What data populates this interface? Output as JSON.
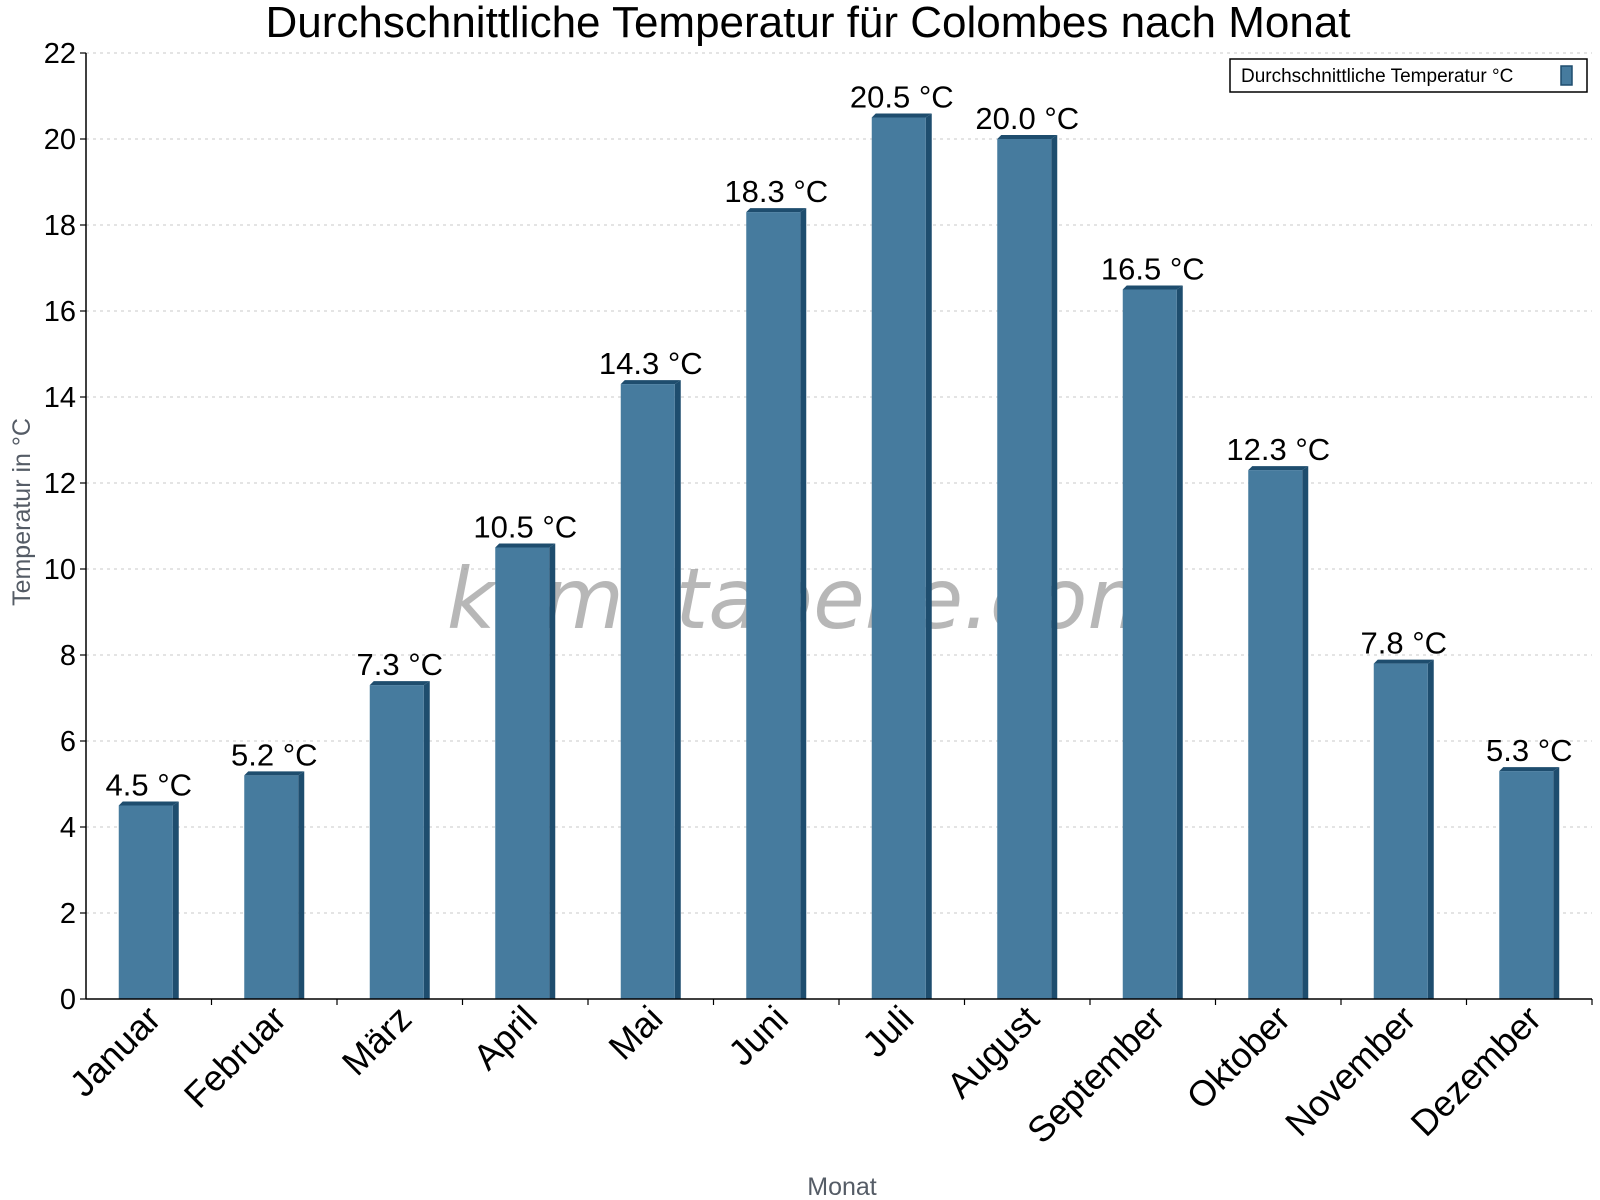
{
  "chart_data": {
    "type": "bar",
    "title": "Durchschnittliche Temperatur für Colombes nach Monat",
    "xlabel": "Monat",
    "ylabel": "Temperatur in °C",
    "categories": [
      "Januar",
      "Februar",
      "März",
      "April",
      "Mai",
      "Juni",
      "Juli",
      "August",
      "September",
      "Oktober",
      "November",
      "Dezember"
    ],
    "series": [
      {
        "name": "Durchschnittliche Temperatur °C",
        "values": [
          4.5,
          5.2,
          7.3,
          10.5,
          14.3,
          18.3,
          20.5,
          20.0,
          16.5,
          12.3,
          7.8,
          5.3
        ],
        "labels": [
          "4.5 °C",
          "5.2 °C",
          "7.3 °C",
          "10.5 °C",
          "14.3 °C",
          "18.3 °C",
          "20.5 °C",
          "20.0 °C",
          "16.5 °C",
          "12.3 °C",
          "7.8 °C",
          "5.3 °C"
        ]
      }
    ],
    "ylim": [
      0,
      22
    ],
    "yticks": [
      "0",
      "2",
      "4",
      "6",
      "8",
      "10",
      "12",
      "14",
      "16",
      "18",
      "20",
      "22"
    ],
    "grid": true,
    "legend_position": "top-right",
    "colors": {
      "bar": "#467b9e",
      "bar_side": "#1e4d6e",
      "grid": "#c8c8c8"
    },
    "watermark": "klimatabelle.com"
  }
}
